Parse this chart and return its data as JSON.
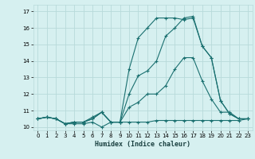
{
  "title": "",
  "xlabel": "Humidex (Indice chaleur)",
  "ylabel": "",
  "background_color": "#d6f0f0",
  "grid_color": "#b8dada",
  "line_color": "#1a7070",
  "xlim": [
    -0.5,
    23.5
  ],
  "ylim": [
    9.8,
    17.4
  ],
  "xticks": [
    0,
    1,
    2,
    3,
    4,
    5,
    6,
    7,
    8,
    9,
    10,
    11,
    12,
    13,
    14,
    15,
    16,
    17,
    18,
    19,
    20,
    21,
    22,
    23
  ],
  "yticks": [
    10,
    11,
    12,
    13,
    14,
    15,
    16,
    17
  ],
  "series1_x": [
    0,
    1,
    2,
    3,
    4,
    5,
    6,
    7,
    8,
    9,
    10,
    11,
    12,
    13,
    14,
    15,
    16,
    17,
    18,
    19,
    20,
    21,
    22,
    23
  ],
  "series1_y": [
    10.5,
    10.6,
    10.5,
    10.2,
    10.2,
    10.2,
    10.3,
    10.0,
    10.3,
    10.3,
    10.3,
    10.3,
    10.3,
    10.4,
    10.4,
    10.4,
    10.4,
    10.4,
    10.4,
    10.4,
    10.4,
    10.4,
    10.4,
    10.5
  ],
  "series2_x": [
    0,
    1,
    2,
    3,
    4,
    5,
    6,
    7,
    8,
    9,
    10,
    11,
    12,
    13,
    14,
    15,
    16,
    17,
    18,
    19,
    20,
    21,
    22,
    23
  ],
  "series2_y": [
    10.5,
    10.6,
    10.5,
    10.2,
    10.3,
    10.3,
    10.5,
    10.9,
    10.3,
    10.3,
    11.2,
    11.5,
    12.0,
    12.0,
    12.5,
    13.5,
    14.2,
    14.2,
    12.8,
    11.7,
    10.9,
    10.9,
    10.5,
    10.5
  ],
  "series3_x": [
    0,
    1,
    2,
    3,
    4,
    5,
    6,
    7,
    8,
    9,
    10,
    11,
    12,
    13,
    14,
    15,
    16,
    17,
    18,
    19,
    20,
    21,
    22,
    23
  ],
  "series3_y": [
    10.5,
    10.6,
    10.5,
    10.2,
    10.3,
    10.3,
    10.6,
    10.9,
    10.3,
    10.3,
    12.0,
    13.1,
    13.4,
    14.0,
    15.5,
    16.0,
    16.6,
    16.7,
    14.9,
    14.2,
    11.6,
    10.8,
    10.5,
    10.5
  ],
  "series4_x": [
    0,
    1,
    2,
    3,
    4,
    5,
    6,
    7,
    8,
    9,
    10,
    11,
    12,
    13,
    14,
    15,
    16,
    17,
    18,
    19,
    20,
    21,
    22,
    23
  ],
  "series4_y": [
    10.5,
    10.6,
    10.5,
    10.2,
    10.3,
    10.3,
    10.5,
    10.9,
    10.3,
    10.3,
    13.5,
    15.4,
    16.0,
    16.6,
    16.6,
    16.6,
    16.5,
    16.6,
    14.9,
    14.2,
    11.6,
    10.8,
    10.5,
    10.5
  ]
}
